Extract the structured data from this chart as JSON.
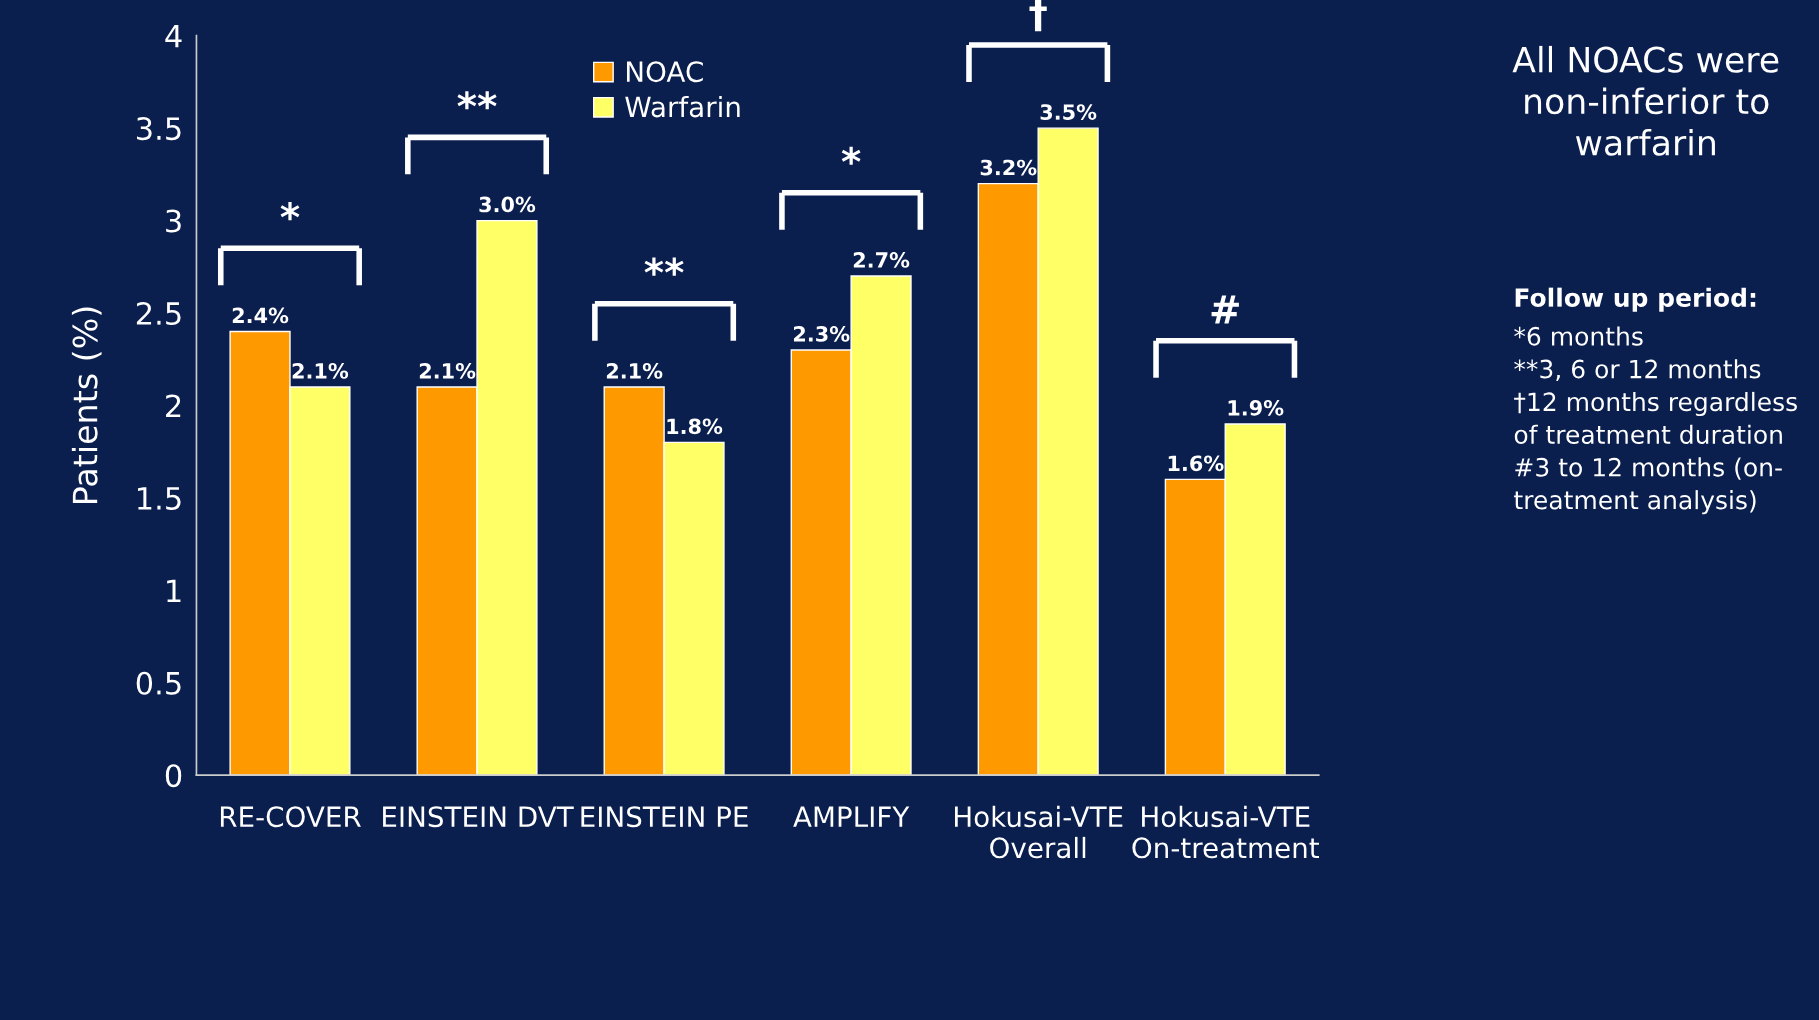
{
  "chart_data": {
    "type": "bar",
    "ylabel": "Patients (%)",
    "categories": [
      "RE-COVER",
      "EINSTEIN DVT",
      "EINSTEIN PE",
      "AMPLIFY",
      "Hokusai-VTE\nOverall",
      "Hokusai-VTE\nOn-treatment"
    ],
    "series": [
      {
        "name": "NOAC",
        "color": "#ff9900",
        "values": [
          2.4,
          2.1,
          2.1,
          2.3,
          3.2,
          1.6
        ],
        "value_labels": [
          "2.4%",
          "2.1%",
          "2.1%",
          "2.3%",
          "3.2%",
          "1.6%"
        ]
      },
      {
        "name": "Warfarin",
        "color": "#ffff66",
        "values": [
          2.1,
          3.0,
          1.8,
          2.7,
          3.5,
          1.9
        ],
        "value_labels": [
          "2.1%",
          "3.0%",
          "1.8%",
          "2.7%",
          "3.5%",
          "1.9%"
        ]
      }
    ],
    "ylim": [
      0,
      4
    ],
    "yticks": [
      0,
      0.5,
      1,
      1.5,
      2,
      2.5,
      3,
      3.5,
      4
    ],
    "grid": false,
    "legend": "top",
    "annotations": [
      "*",
      "**",
      "**",
      "*",
      "†",
      "#",
      "All NOACs were\nnon-inferior to\nwarfarin",
      "Follow up period:",
      "*6 months\n**3, 6 or 12 months\n†12 months regardless\nof treatment duration\n#3 to 12 months (on-\ntreatment analysis)"
    ]
  }
}
